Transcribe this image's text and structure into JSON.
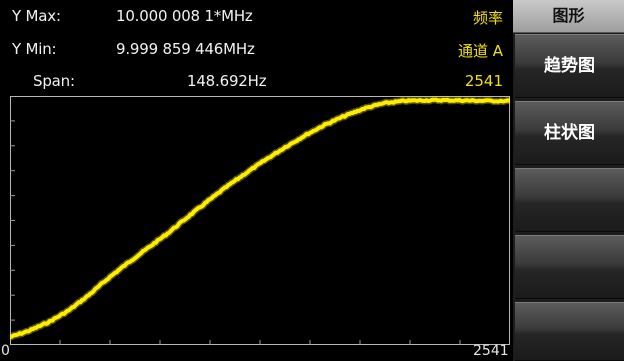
{
  "header": {
    "ymax_label": "Y Max:",
    "ymax_value": "10.000 008 1*MHz",
    "ymin_label": "Y Min:",
    "ymin_value": "9.999 859 446MHz",
    "span_label": "Span:",
    "span_value": "148.692Hz",
    "measurement": "频率",
    "channel": "通道 A",
    "count": "2541"
  },
  "side_menu": {
    "title": "图形",
    "items": [
      "趋势图",
      "柱状图",
      "",
      "",
      ""
    ]
  },
  "colors": {
    "trace": "#ffee00",
    "readout_accent": "#f0e010",
    "background": "#000000"
  },
  "chart_data": {
    "type": "line",
    "x_label_min": "0",
    "x_label_max": "2541",
    "xlim": [
      0,
      2541
    ],
    "ylim": [
      9.999859446,
      10.0000081
    ],
    "y_unit": "MHz",
    "x": [
      0,
      100,
      200,
      300,
      400,
      500,
      600,
      700,
      800,
      900,
      1000,
      1100,
      1200,
      1300,
      1400,
      1500,
      1600,
      1700,
      1800,
      1900,
      2000,
      2100,
      2200,
      2300,
      2400,
      2541
    ],
    "y": [
      9.9998618,
      9.9998659,
      9.9998713,
      9.9998784,
      9.9998877,
      9.9998982,
      9.9999077,
      9.9999167,
      9.9999257,
      9.9999356,
      9.9999452,
      9.9999545,
      9.9999631,
      9.9999713,
      9.9999791,
      9.9999863,
      9.9999928,
      9.9999982,
      10.0000029,
      10.0000061,
      10.0000075,
      10.0000079,
      10.000008,
      10.0000078,
      10.0000076,
      10.0000075
    ]
  }
}
